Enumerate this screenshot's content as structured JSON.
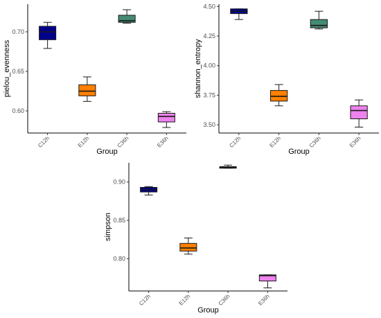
{
  "chart_data": [
    {
      "type": "boxplot",
      "xlabel": "Group",
      "ylabel": "pielou_evenness",
      "categories": [
        "C12h",
        "E12h",
        "C36h",
        "E36h"
      ],
      "ylim": [
        0.572,
        0.735
      ],
      "yticks": [
        0.6,
        0.65,
        0.7
      ],
      "ytick_labels": [
        "0.60",
        "0.65",
        "0.70"
      ],
      "grid": false,
      "boxes": [
        {
          "group": "C12h",
          "whisker_low": 0.679,
          "q1": 0.69,
          "median": 0.7,
          "q3": 0.707,
          "whisker_high": 0.712,
          "color": "#00008b"
        },
        {
          "group": "E12h",
          "whisker_low": 0.612,
          "q1": 0.619,
          "median": 0.625,
          "q3": 0.633,
          "whisker_high": 0.643,
          "color": "#ff7f00"
        },
        {
          "group": "C36h",
          "whisker_low": 0.711,
          "q1": 0.712,
          "median": 0.714,
          "q3": 0.721,
          "whisker_high": 0.728,
          "color": "#458b74"
        },
        {
          "group": "E36h",
          "whisker_low": 0.579,
          "q1": 0.586,
          "median": 0.593,
          "q3": 0.597,
          "whisker_high": 0.599,
          "color": "#ee82ee"
        }
      ]
    },
    {
      "type": "boxplot",
      "xlabel": "Group",
      "ylabel": "shannon_entropy",
      "categories": [
        "C12h",
        "E12h",
        "C36h",
        "E36h"
      ],
      "ylim": [
        3.43,
        4.52
      ],
      "yticks": [
        3.5,
        3.75,
        4.0,
        4.25,
        4.5
      ],
      "ytick_labels": [
        "3.50",
        "3.75",
        "4.00",
        "4.25",
        "4.50"
      ],
      "grid": false,
      "boxes": [
        {
          "group": "C12h",
          "whisker_low": 4.39,
          "q1": 4.44,
          "median": 4.46,
          "q3": 4.48,
          "whisker_high": 4.48,
          "color": "#00008b"
        },
        {
          "group": "E12h",
          "whisker_low": 3.66,
          "q1": 3.7,
          "median": 3.74,
          "q3": 3.79,
          "whisker_high": 3.84,
          "color": "#ff7f00"
        },
        {
          "group": "C36h",
          "whisker_low": 4.31,
          "q1": 4.32,
          "median": 4.34,
          "q3": 4.39,
          "whisker_high": 4.46,
          "color": "#458b74"
        },
        {
          "group": "E36h",
          "whisker_low": 3.48,
          "q1": 3.55,
          "median": 3.62,
          "q3": 3.66,
          "whisker_high": 3.71,
          "color": "#ee82ee"
        }
      ]
    },
    {
      "type": "boxplot",
      "xlabel": "Group",
      "ylabel": "simpson",
      "categories": [
        "C12h",
        "E12h",
        "C36h",
        "E36h"
      ],
      "ylim": [
        0.758,
        0.925
      ],
      "yticks": [
        0.8,
        0.85,
        0.9
      ],
      "ytick_labels": [
        "0.80",
        "0.85",
        "0.90"
      ],
      "grid": false,
      "boxes": [
        {
          "group": "C12h",
          "whisker_low": 0.883,
          "q1": 0.887,
          "median": 0.89,
          "q3": 0.893,
          "whisker_high": 0.894,
          "color": "#00008b"
        },
        {
          "group": "E12h",
          "whisker_low": 0.806,
          "q1": 0.81,
          "median": 0.814,
          "q3": 0.82,
          "whisker_high": 0.827,
          "color": "#ff7f00"
        },
        {
          "group": "C36h",
          "whisker_low": 0.918,
          "q1": 0.918,
          "median": 0.919,
          "q3": 0.92,
          "whisker_high": 0.922,
          "color": "#458b74"
        },
        {
          "group": "E36h",
          "whisker_low": 0.762,
          "q1": 0.771,
          "median": 0.778,
          "q3": 0.779,
          "whisker_high": 0.779,
          "color": "#ee82ee"
        }
      ]
    }
  ]
}
